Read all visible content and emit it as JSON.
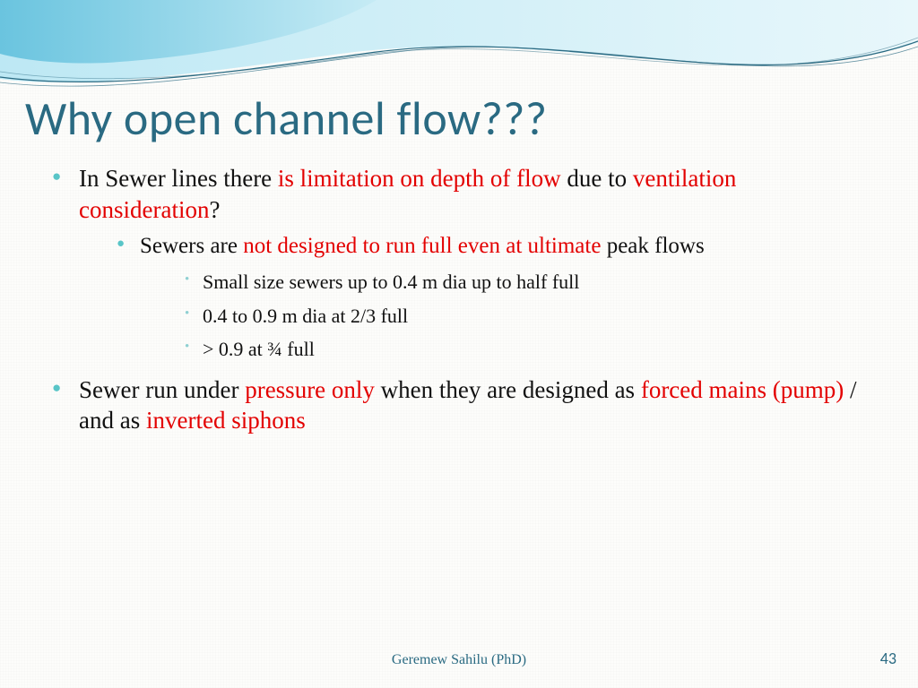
{
  "colors": {
    "title": "#2a6a82",
    "body_text": "#111111",
    "highlight": "#e30000",
    "bullet_lvl1": "#59c5c7",
    "bullet_lvl2": "#59c5c7",
    "bullet_lvl3": "#8fd0d2",
    "footer_author": "#2a6a82",
    "page_number": "#2a6a82",
    "wave_fill_light": "#bde8f4",
    "wave_fill_mid": "#8fd4e8",
    "wave_line": "#2a6a82",
    "background": "#fdfdfb"
  },
  "typography": {
    "title_family": "Segoe UI Light",
    "title_size_pt": 40,
    "body_family": "Georgia",
    "lvl1_size_pt": 20,
    "lvl2_size_pt": 19,
    "lvl3_size_pt": 17,
    "footer_size_pt": 12
  },
  "title": "Why open channel flow???",
  "bullets": {
    "b1": {
      "seg1": "In Sewer lines there ",
      "hl1": "is limitation on depth of flow ",
      "seg2": "due to ",
      "hl2": "ventilation consideration",
      "seg3": "?"
    },
    "b1_1": {
      "seg1": "Sewers are ",
      "hl1": "not designed to run full even at ultimate ",
      "seg2": "peak flows"
    },
    "b1_1_1": "Small size sewers up to 0.4 m dia up to half full",
    "b1_1_2": "0.4 to 0.9 m dia at 2/3 full",
    "b1_1_3": "> 0.9 at ¾ full",
    "b2": {
      "seg1": "Sewer run under ",
      "hl1": "pressure only ",
      "seg2": "when they are designed as ",
      "hl2": "forced mains (pump) ",
      "seg3": "/ and as ",
      "hl3": "inverted siphons"
    }
  },
  "footer": {
    "author": "Geremew Sahilu (PhD)",
    "page_number": "43"
  }
}
